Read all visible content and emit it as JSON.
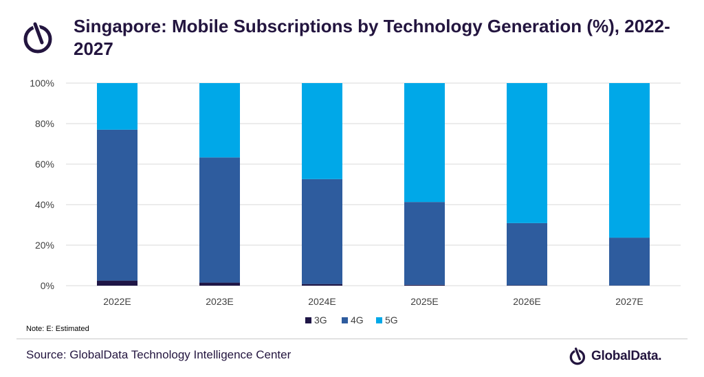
{
  "title": "Singapore: Mobile Subscriptions by Technology Generation (%), 2022-2027",
  "note": "Note: E: Estimated",
  "source": "Source: GlobalData Technology Intelligence Center",
  "brand": {
    "name": "GlobalData."
  },
  "colors": {
    "3G": "#1f1646",
    "4G": "#2e5c9e",
    "5G": "#00a8e8",
    "title": "#23153f",
    "grid": "#d9d9d9"
  },
  "chart_data": {
    "type": "bar",
    "stacked": true,
    "categories": [
      "2022E",
      "2023E",
      "2024E",
      "2025E",
      "2026E",
      "2027E"
    ],
    "series": [
      {
        "name": "3G",
        "values": [
          2.5,
          1.5,
          0.8,
          0.4,
          0.2,
          0.1
        ]
      },
      {
        "name": "4G",
        "values": [
          74.5,
          61.8,
          51.8,
          40.9,
          30.7,
          23.6
        ]
      },
      {
        "name": "5G",
        "values": [
          23.0,
          36.7,
          47.4,
          58.7,
          69.1,
          76.3
        ]
      }
    ],
    "ylim": [
      0,
      100
    ],
    "yticks": [
      0,
      20,
      40,
      60,
      80,
      100
    ],
    "ytick_labels": [
      "0%",
      "20%",
      "40%",
      "60%",
      "80%",
      "100%"
    ],
    "grid": true,
    "legend": "bottom-center"
  }
}
